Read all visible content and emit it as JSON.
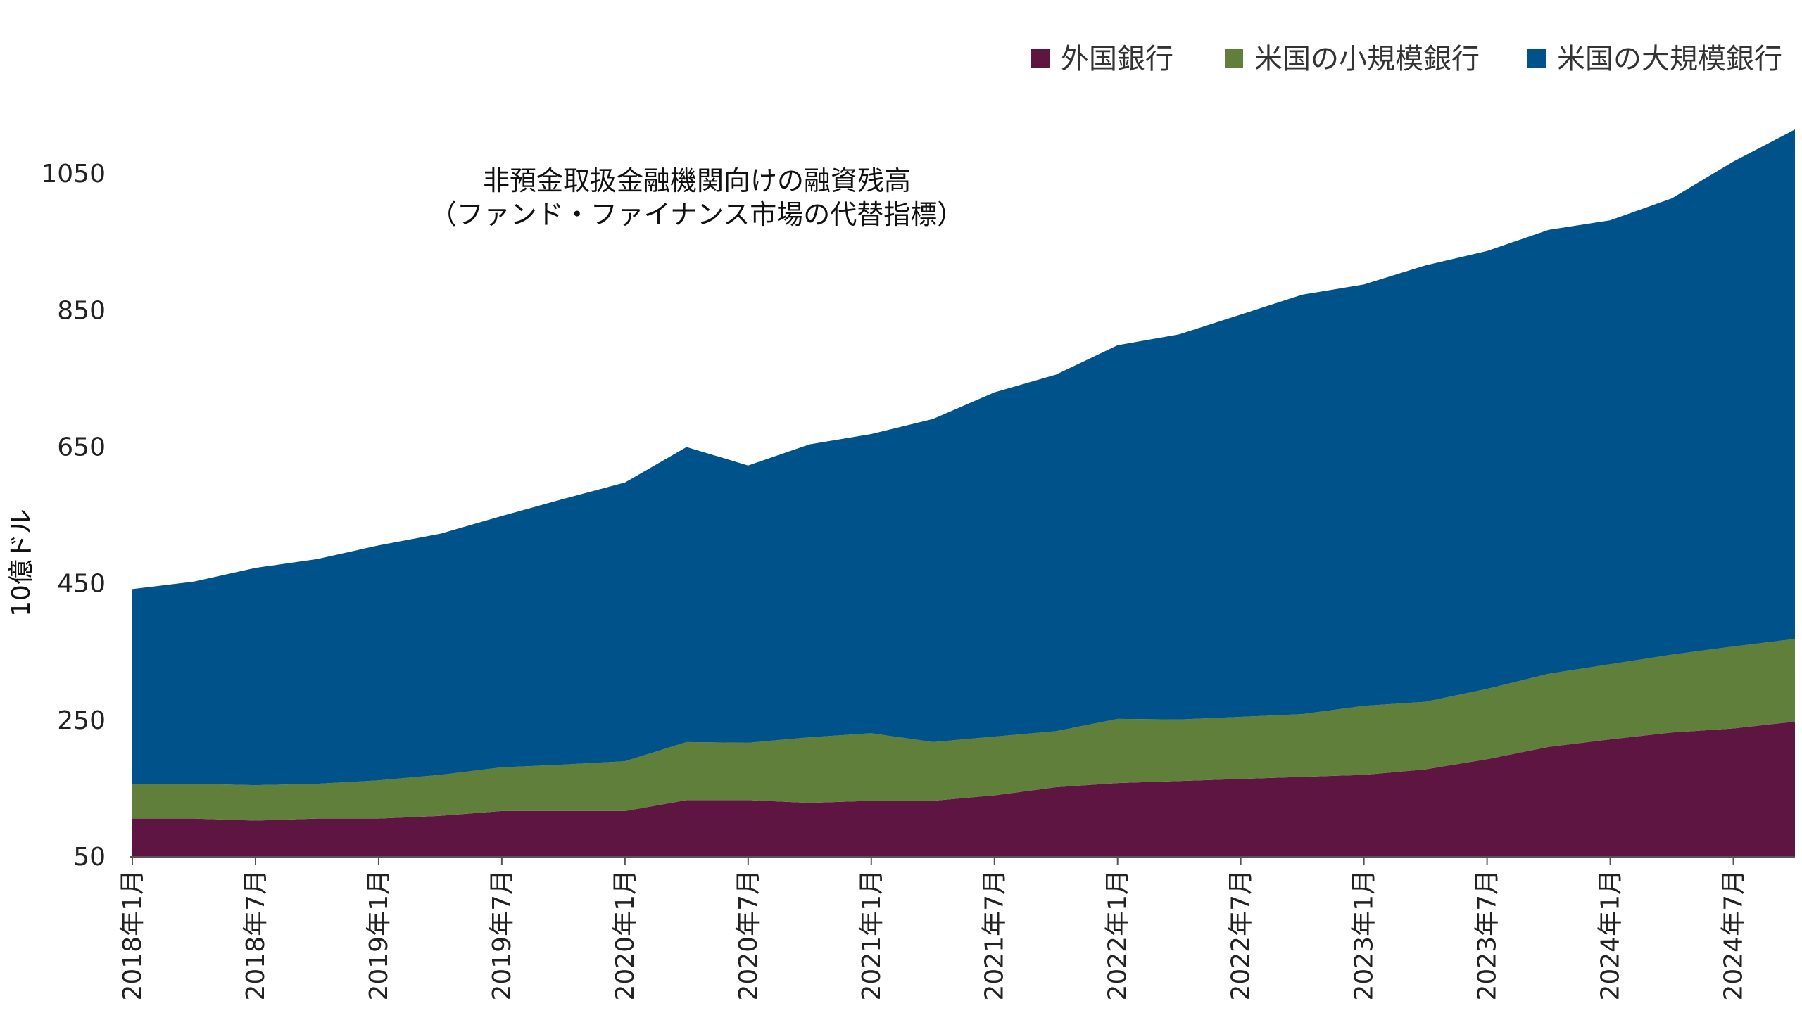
{
  "chart_data": {
    "type": "area",
    "stacked": true,
    "title_lines": [
      "非預金取扱金融機関向けの融資残高",
      "（ファンド・ファイナンス市場の代替指標）"
    ],
    "xlabel": "",
    "ylabel": "10億ドル",
    "ylim": [
      50,
      1150
    ],
    "yticks": [
      50,
      250,
      450,
      650,
      850,
      1050
    ],
    "x_tick_labels": [
      "2018年1月",
      "2018年7月",
      "2019年1月",
      "2019年7月",
      "2020年1月",
      "2020年7月",
      "2021年1月",
      "2021年7月",
      "2022年1月",
      "2022年7月",
      "2023年1月",
      "2023年7月",
      "2024年1月",
      "2024年7月"
    ],
    "x": [
      "2018-01",
      "2018-04",
      "2018-07",
      "2018-10",
      "2019-01",
      "2019-04",
      "2019-07",
      "2019-10",
      "2020-01",
      "2020-04",
      "2020-07",
      "2020-10",
      "2021-01",
      "2021-04",
      "2021-07",
      "2021-10",
      "2022-01",
      "2022-04",
      "2022-07",
      "2022-10",
      "2023-01",
      "2023-04",
      "2023-07",
      "2023-10",
      "2024-01",
      "2024-04",
      "2024-07",
      "2024-10"
    ],
    "legend_position": "top-right",
    "grid": false,
    "series": [
      {
        "name": "外国銀行",
        "color": "#5e1542",
        "values": [
          106,
          106,
          103,
          106,
          106,
          110,
          117,
          117,
          117,
          133,
          133,
          129,
          132,
          132,
          140,
          152,
          158,
          161,
          164,
          167,
          170,
          178,
          193,
          211,
          222,
          232,
          238,
          248
        ]
      },
      {
        "name": "米国の小規模銀行",
        "color": "#5f7f3b",
        "values": [
          51,
          51,
          52,
          51,
          56,
          60,
          64,
          68,
          73,
          85,
          84,
          96,
          99,
          86,
          86,
          82,
          94,
          90,
          91,
          92,
          101,
          99,
          103,
          107,
          110,
          114,
          120,
          121
        ]
      },
      {
        "name": "米国の大規模銀行",
        "color": "#00528a",
        "values": [
          285,
          296,
          318,
          329,
          344,
          353,
          368,
          389,
          408,
          432,
          406,
          429,
          438,
          473,
          504,
          522,
          547,
          564,
          589,
          614,
          617,
          639,
          641,
          650,
          650,
          668,
          710,
          746
        ]
      }
    ]
  }
}
